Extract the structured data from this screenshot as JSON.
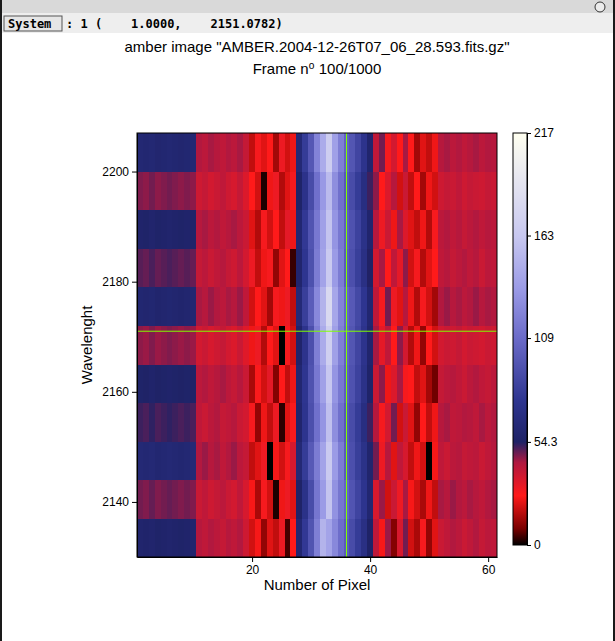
{
  "window": {
    "status_button": "System",
    "status_text": ": 1 (    1.0000,    2151.0782)"
  },
  "chart_data": {
    "type": "heatmap",
    "title": "amber image \"AMBER.2004-12-26T07_06_28.593.fits.gz\"",
    "subtitle": "Frame n⁰ 100/1000",
    "x_label": "Number of Pixel",
    "y_label": "Wavelenght",
    "x": [
      1,
      2,
      3,
      4,
      5,
      6,
      7,
      8,
      9,
      10,
      11,
      12,
      13,
      14,
      15,
      16,
      17,
      18,
      19,
      20,
      21,
      22,
      23,
      24,
      25,
      26,
      27,
      28,
      29,
      30,
      31,
      32,
      33,
      34,
      35,
      36,
      37,
      38,
      39,
      40,
      41,
      42,
      43,
      44,
      45,
      46,
      47,
      48,
      49,
      50,
      51,
      52,
      53,
      54,
      55,
      56,
      57,
      58,
      59,
      60,
      61
    ],
    "y": [
      2133.5,
      2140.5,
      2147.5,
      2154.5,
      2161.5,
      2168.5,
      2175.5,
      2182.5,
      2189.5,
      2196.5,
      2203.5
    ],
    "z": [
      [
        58,
        57,
        58,
        56,
        57,
        58,
        57,
        56,
        57,
        58,
        42,
        40,
        43,
        41,
        39,
        42,
        40,
        43,
        37,
        20,
        25,
        12,
        22,
        18,
        30,
        5,
        26,
        60,
        78,
        95,
        120,
        150,
        140,
        125,
        110,
        100,
        90,
        80,
        70,
        55,
        40,
        25,
        45,
        10,
        35,
        48,
        20,
        15,
        28,
        12,
        22,
        38,
        40,
        43,
        41,
        38,
        40,
        43,
        39,
        41,
        40
      ],
      [
        48,
        47,
        49,
        47,
        48,
        49,
        48,
        47,
        48,
        47,
        38,
        40,
        37,
        39,
        41,
        38,
        36,
        40,
        35,
        25,
        15,
        28,
        20,
        2,
        24,
        30,
        22,
        55,
        72,
        90,
        115,
        135,
        160,
        130,
        115,
        105,
        95,
        85,
        75,
        60,
        35,
        45,
        20,
        38,
        30,
        44,
        25,
        20,
        15,
        24,
        18,
        44,
        42,
        45,
        43,
        41,
        44,
        42,
        40,
        43,
        44
      ],
      [
        62,
        61,
        62,
        60,
        61,
        62,
        61,
        60,
        61,
        62,
        43,
        45,
        42,
        44,
        40,
        43,
        45,
        41,
        39,
        18,
        22,
        30,
        0,
        25,
        20,
        28,
        35,
        62,
        80,
        98,
        118,
        140,
        165,
        135,
        118,
        100,
        92,
        82,
        72,
        58,
        48,
        30,
        42,
        22,
        40,
        35,
        18,
        24,
        20,
        0,
        25,
        40,
        38,
        41,
        42,
        39,
        40,
        41,
        38,
        40,
        42
      ],
      [
        52,
        51,
        53,
        51,
        52,
        53,
        52,
        51,
        52,
        51,
        40,
        38,
        41,
        43,
        39,
        40,
        42,
        38,
        36,
        28,
        12,
        24,
        18,
        30,
        3,
        22,
        27,
        58,
        75,
        92,
        112,
        132,
        158,
        128,
        112,
        98,
        90,
        80,
        68,
        52,
        42,
        28,
        36,
        48,
        20,
        38,
        22,
        12,
        26,
        18,
        24,
        42,
        44,
        40,
        41,
        43,
        42,
        40,
        44,
        41,
        43
      ],
      [
        56,
        55,
        57,
        55,
        56,
        57,
        56,
        55,
        56,
        55,
        41,
        43,
        40,
        42,
        44,
        41,
        39,
        42,
        38,
        15,
        27,
        20,
        32,
        10,
        26,
        18,
        24,
        60,
        76,
        94,
        116,
        138,
        162,
        132,
        116,
        102,
        94,
        84,
        72,
        56,
        38,
        46,
        24,
        34,
        44,
        28,
        26,
        18,
        22,
        14,
        8,
        39,
        41,
        42,
        40,
        38,
        41,
        43,
        40,
        39,
        41
      ],
      [
        46,
        45,
        47,
        45,
        46,
        47,
        46,
        45,
        46,
        45,
        36,
        38,
        35,
        37,
        39,
        36,
        34,
        38,
        33,
        24,
        30,
        16,
        26,
        22,
        0,
        28,
        20,
        57,
        74,
        92,
        120,
        145,
        170,
        138,
        120,
        104,
        96,
        86,
        74,
        58,
        44,
        32,
        40,
        26,
        46,
        36,
        16,
        24,
        12,
        26,
        20,
        36,
        38,
        37,
        39,
        36,
        38,
        37,
        36,
        38,
        37
      ],
      [
        60,
        59,
        60,
        58,
        59,
        60,
        59,
        58,
        59,
        60,
        44,
        42,
        45,
        43,
        41,
        44,
        42,
        45,
        40,
        20,
        26,
        22,
        14,
        28,
        24,
        30,
        18,
        63,
        82,
        100,
        125,
        150,
        180,
        142,
        122,
        106,
        98,
        88,
        76,
        60,
        40,
        28,
        48,
        30,
        22,
        42,
        24,
        16,
        28,
        20,
        14,
        43,
        45,
        42,
        44,
        41,
        43,
        45,
        42,
        44,
        43
      ],
      [
        50,
        49,
        51,
        49,
        50,
        51,
        50,
        49,
        50,
        49,
        39,
        41,
        38,
        40,
        42,
        39,
        37,
        41,
        36,
        30,
        18,
        24,
        28,
        12,
        22,
        26,
        4,
        58,
        76,
        93,
        118,
        140,
        165,
        135,
        118,
        100,
        92,
        82,
        70,
        54,
        36,
        44,
        26,
        40,
        32,
        46,
        20,
        28,
        16,
        22,
        26,
        40,
        42,
        39,
        41,
        43,
        40,
        42,
        38,
        41,
        40
      ],
      [
        57,
        56,
        58,
        56,
        57,
        58,
        57,
        56,
        57,
        56,
        42,
        44,
        41,
        43,
        40,
        42,
        44,
        41,
        38,
        22,
        16,
        28,
        20,
        26,
        18,
        32,
        24,
        60,
        78,
        95,
        116,
        138,
        160,
        132,
        116,
        102,
        94,
        84,
        72,
        58,
        42,
        30,
        38,
        24,
        44,
        34,
        22,
        18,
        24,
        16,
        28,
        41,
        43,
        40,
        42,
        39,
        41,
        43,
        40,
        42,
        41
      ],
      [
        47,
        46,
        48,
        46,
        47,
        48,
        47,
        46,
        47,
        46,
        37,
        39,
        36,
        38,
        40,
        37,
        35,
        39,
        34,
        26,
        20,
        2,
        24,
        30,
        16,
        22,
        28,
        56,
        73,
        90,
        112,
        134,
        155,
        128,
        112,
        98,
        90,
        80,
        68,
        52,
        46,
        26,
        34,
        42,
        20,
        38,
        18,
        26,
        14,
        24,
        20,
        37,
        39,
        38,
        40,
        37,
        39,
        38,
        37,
        39,
        38
      ],
      [
        61,
        60,
        61,
        59,
        60,
        61,
        60,
        59,
        60,
        61,
        43,
        41,
        44,
        42,
        40,
        43,
        41,
        44,
        39,
        18,
        28,
        22,
        26,
        14,
        30,
        20,
        24,
        62,
        80,
        97,
        122,
        145,
        168,
        138,
        120,
        104,
        96,
        86,
        74,
        58,
        40,
        48,
        28,
        36,
        26,
        44,
        26,
        14,
        22,
        18,
        24,
        42,
        44,
        41,
        43,
        40,
        42,
        44,
        41,
        43,
        42
      ]
    ],
    "xlim": [
      0.5,
      61.5
    ],
    "ylim": [
      2130,
      2207
    ],
    "xticks": [
      20,
      40,
      60
    ],
    "yticks": [
      2140,
      2160,
      2180,
      2200
    ],
    "colorbar": {
      "range": [
        0,
        217
      ],
      "ticks": [
        0,
        54.3,
        109,
        163,
        217
      ]
    },
    "cursor": {
      "x": 36,
      "y": 2171
    }
  }
}
